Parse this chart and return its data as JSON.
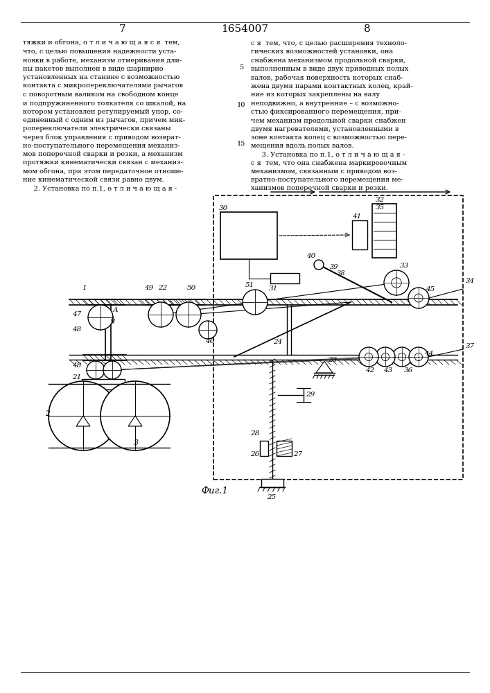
{
  "page_number_left": "7",
  "page_number_center": "1654007",
  "page_number_right": "8",
  "text_left": "тяжки и обгона, о т л и ч а ю щ а я с я  тем,\nчто, с целью повышения надежности уста-\nновки в работе, механизм отмеривания дли-\nны пакетов выполнен в виде шарнирно\nустановленных на станине с возможностью\nконтакта с микропереключателями рычагов\nс поворотным валиком на свободном конце\nи подпружиненного толкателя со шкалой, на\nкотором установлен регулируемый упор, со-\nединенный с одним из рычагов, причем мик-\nропереключатели электрически связаны\nчерез блок управления с приводом возврат-\nно-поступательного перемещения механиз-\nмов поперечной сварки и резки, а механизм\nпротяжки кинематически связан с механиз-\nмом обгона, при этом передаточное отноше-\nние кинематической связи равно двум.\n     2. Установка по п.1, о т л и ч а ю щ а я -",
  "text_right": "с я  тем, что, с целью расширения техноло-\nгических возможностей установки, она\nснабжена механизмом продольной сварки,\nвыполненным в виде двух приводных полых\nвалов, рабочая поверхность которых снаб-\nжена двумя парами контактных колец, край-\nние из которых закреплены на валу\nнеподвижно, а внутренние – с возможно-\nстью фиксированного перемещения, при-\nчем механизм продольной сварки снабжен\nдвумя нагревателями, установленными в\nзоне контакта колец с возможностью пере-\nмещения вдоль полых валов.\n     3. Установка по п.1, о т л и ч а ю щ а я -\nс я  тем, что она снабжена маркировочным\nмеханизмом, связанным с приводом воз-\nвратно-поступательного перемещения ме-\nханизмов поперечной сварки и резки.",
  "line_number_5": "5",
  "line_number_10": "10",
  "line_number_15": "15",
  "fig_caption": "Фиг.1",
  "bg_color": "#ffffff",
  "text_color": "#000000"
}
